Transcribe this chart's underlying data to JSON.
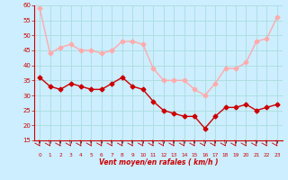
{
  "hours": [
    0,
    1,
    2,
    3,
    4,
    5,
    6,
    7,
    8,
    9,
    10,
    11,
    12,
    13,
    14,
    15,
    16,
    17,
    18,
    19,
    20,
    21,
    22,
    23
  ],
  "wind_avg": [
    36,
    33,
    32,
    34,
    33,
    32,
    32,
    34,
    36,
    33,
    32,
    28,
    25,
    24,
    23,
    23,
    19,
    23,
    26,
    26,
    27,
    25,
    26,
    27
  ],
  "wind_gust": [
    59,
    44,
    46,
    47,
    45,
    45,
    44,
    45,
    48,
    48,
    47,
    39,
    35,
    35,
    35,
    32,
    30,
    34,
    39,
    39,
    41,
    48,
    49,
    56
  ],
  "ylim_min": 15,
  "ylim_max": 60,
  "yticks": [
    15,
    20,
    25,
    30,
    35,
    40,
    45,
    50,
    55,
    60
  ],
  "xlabel": "Vent moyen/en rafales ( km/h )",
  "bg_color": "#cceeff",
  "grid_color": "#aadddd",
  "avg_color": "#cc0000",
  "gust_color": "#ffaaaa",
  "line_width": 1.0,
  "marker_size": 2.5
}
